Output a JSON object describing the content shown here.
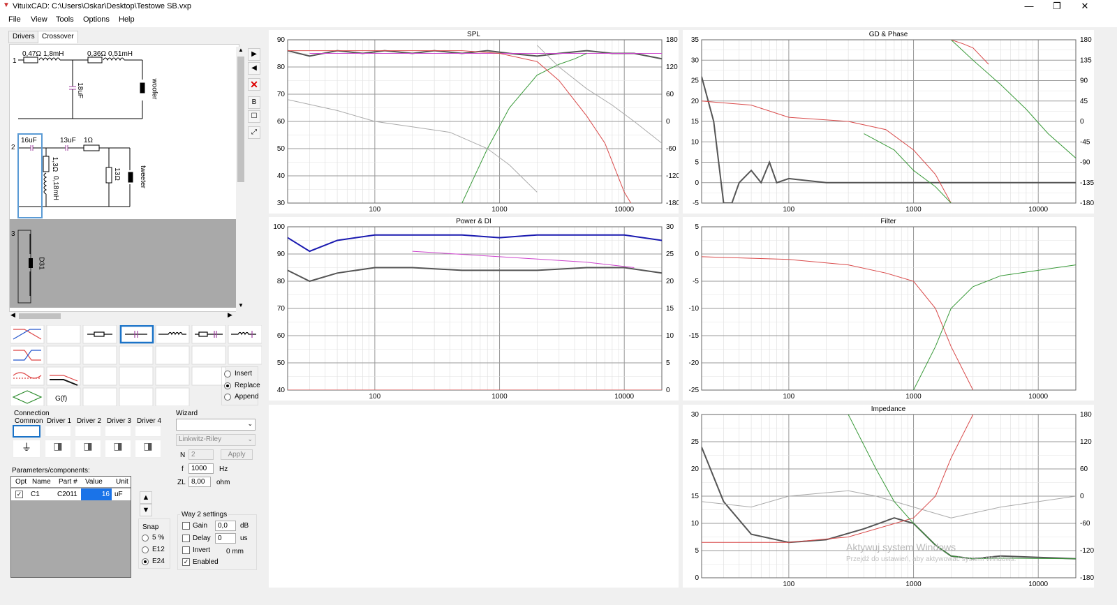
{
  "window": {
    "title": "VituixCAD: C:\\Users\\Oskar\\Desktop\\Testowe SB.vxp",
    "min": "—",
    "max": "❐",
    "close": "✕"
  },
  "menu": [
    "File",
    "View",
    "Tools",
    "Options",
    "Help"
  ],
  "tabs": [
    "Drivers",
    "Crossover"
  ],
  "schematic": {
    "way1": {
      "num": "1",
      "r1": "0,47Ω",
      "l1": "1,8mH",
      "r2": "0,36Ω",
      "l2": "0,51mH",
      "c1": "18uF",
      "driver": "woofer"
    },
    "way2": {
      "num": "2",
      "c1": "16uF",
      "c2": "13uF",
      "r1": "1Ω",
      "r2": "1,3Ω",
      "l1": "0,18mH",
      "r3": "13Ω",
      "driver": "tweeter"
    },
    "way3": {
      "num": "3",
      "driver": "D31"
    }
  },
  "insert_mode": {
    "options": [
      "Insert",
      "Replace",
      "Append"
    ],
    "selected": "Replace"
  },
  "gf_label": "G(f)",
  "connection": {
    "label": "Connection",
    "columns": [
      "Common",
      "Driver 1",
      "Driver 2",
      "Driver 3",
      "Driver 4"
    ]
  },
  "wizard": {
    "label": "Wizard",
    "type": "Linkwitz-Riley",
    "n_label": "N",
    "n": "2",
    "apply": "Apply",
    "f_label": "f",
    "f": "1000",
    "f_unit": "Hz",
    "zl_label": "ZL",
    "zl": "8,00",
    "zl_unit": "ohm"
  },
  "params": {
    "label": "Parameters/components:",
    "columns": [
      "Opt",
      "Name",
      "Part #",
      "Value",
      "Unit"
    ],
    "rows": [
      {
        "name": "C1",
        "part": "C2011",
        "value": "16",
        "unit": "uF",
        "checked": true
      }
    ]
  },
  "snap": {
    "label": "Snap",
    "options": [
      "5 %",
      "E12",
      "E24"
    ],
    "selected": "E24"
  },
  "way_settings": {
    "label": "Way 2 settings",
    "gain_label": "Gain",
    "gain": "0,0",
    "gain_unit": "dB",
    "delay_label": "Delay",
    "delay": "0",
    "delay_unit": "us",
    "invert_label": "Invert",
    "invert_mm": "0 mm",
    "enabled_label": "Enabled",
    "enabled": true
  },
  "charts": {
    "spl": {
      "title": "SPL"
    },
    "gd": {
      "title": "GD & Phase"
    },
    "power": {
      "title": "Power & DI"
    },
    "filter": {
      "title": "Filter"
    },
    "impedance": {
      "title": "Impedance"
    }
  },
  "watermark": {
    "line1": "Aktywuj system Windows",
    "line2": "Przejdź do ustawień, aby aktywować system Windows."
  },
  "colors": {
    "green": "#3a9a3a",
    "red": "#d94a4a",
    "gray": "#555555",
    "lightgray": "#aaaaaa",
    "blue": "#1a1ab0",
    "magenta": "#cc44cc"
  },
  "chart_data": [
    {
      "type": "line",
      "title": "SPL",
      "x_scale": "log",
      "xlim": [
        20,
        20000
      ],
      "ylim": [
        30,
        90
      ],
      "y2lim": [
        -180,
        180
      ],
      "x_ticks": [
        "100",
        "1000",
        "10000"
      ],
      "y_ticks": [
        "30",
        "40",
        "50",
        "60",
        "70",
        "80",
        "90"
      ],
      "y2_ticks": [
        "-180",
        "-120",
        "-60",
        "0",
        "60",
        "120",
        "180"
      ],
      "series": [
        {
          "color": "gray",
          "x": [
            20,
            30,
            50,
            80,
            120,
            200,
            300,
            500,
            800,
            1200,
            2000,
            3000,
            5000,
            8000,
            12000,
            20000
          ],
          "y": [
            86,
            84,
            86,
            85,
            86,
            85,
            86,
            85,
            86,
            85,
            84,
            85,
            86,
            85,
            85,
            83
          ]
        },
        {
          "color": "magenta",
          "x": [
            30,
            20000
          ],
          "y": [
            85,
            85
          ]
        },
        {
          "color": "green",
          "x": [
            500,
            800,
            1200,
            2000,
            3000,
            4000,
            5000
          ],
          "y": [
            30,
            50,
            65,
            77,
            81,
            83,
            85
          ]
        },
        {
          "color": "red",
          "x": [
            20,
            100,
            500,
            1000,
            2000,
            3000,
            5000,
            7000,
            10000,
            12000
          ],
          "y": [
            86,
            86,
            86,
            85,
            82,
            75,
            62,
            52,
            34,
            28
          ]
        },
        {
          "color": "lightgray",
          "x": [
            20,
            50,
            100,
            200,
            400,
            800,
            1200,
            2000
          ],
          "y": [
            68,
            64,
            60,
            58,
            56,
            50,
            44,
            34
          ]
        },
        {
          "color": "lightgray",
          "x": [
            2000,
            3000,
            5000,
            8000,
            12000,
            20000
          ],
          "y": [
            88,
            80,
            72,
            66,
            60,
            52
          ]
        }
      ]
    },
    {
      "type": "line",
      "title": "GD & Phase",
      "x_scale": "log",
      "xlim": [
        20,
        20000
      ],
      "ylim": [
        -5,
        35
      ],
      "y2lim": [
        -180,
        180
      ],
      "x_ticks": [
        "100",
        "1000",
        "10000"
      ],
      "y_ticks": [
        "-5",
        "0",
        "5",
        "10",
        "15",
        "20",
        "25",
        "30",
        "35"
      ],
      "y2_ticks": [
        "-180",
        "-135",
        "-90",
        "-45",
        "0",
        "45",
        "90",
        "135",
        "180"
      ],
      "series": [
        {
          "color": "gray",
          "x": [
            20,
            25,
            30,
            35,
            40,
            50,
            60,
            70,
            80,
            100,
            200,
            1000,
            2000,
            20000
          ],
          "y": [
            26,
            15,
            -5,
            -5,
            0,
            3,
            0,
            5,
            0,
            1,
            0,
            0,
            0,
            0
          ]
        },
        {
          "color": "red",
          "x": [
            20,
            50,
            100,
            300,
            600,
            1000,
            1500,
            2000
          ],
          "y": [
            20,
            19,
            16,
            15,
            13,
            8,
            2,
            -5
          ]
        },
        {
          "color": "red",
          "x": [
            2000,
            2500,
            3000,
            4000
          ],
          "y": [
            35,
            34,
            33,
            29
          ]
        },
        {
          "color": "green",
          "x": [
            400,
            700,
            1000,
            1500,
            2000
          ],
          "y": [
            12,
            8,
            3,
            -1,
            -5
          ]
        },
        {
          "color": "green",
          "x": [
            2000,
            3000,
            5000,
            8000,
            12000,
            20000
          ],
          "y": [
            35,
            30,
            24,
            18,
            12,
            6
          ]
        }
      ]
    },
    {
      "type": "line",
      "title": "Power & DI",
      "x_scale": "log",
      "xlim": [
        20,
        20000
      ],
      "ylim": [
        40,
        100
      ],
      "y2lim": [
        0,
        30
      ],
      "x_ticks": [
        "100",
        "1000",
        "10000"
      ],
      "y_ticks": [
        "40",
        "50",
        "60",
        "70",
        "80",
        "90",
        "100"
      ],
      "y2_ticks": [
        "0",
        "5",
        "10",
        "15",
        "20",
        "25",
        "30"
      ],
      "series": [
        {
          "color": "blue",
          "x": [
            20,
            30,
            50,
            100,
            200,
            500,
            1000,
            2000,
            5000,
            10000,
            20000
          ],
          "y": [
            96,
            91,
            95,
            97,
            97,
            97,
            96,
            97,
            97,
            97,
            95
          ]
        },
        {
          "color": "gray",
          "x": [
            20,
            30,
            50,
            100,
            200,
            500,
            1000,
            2000,
            5000,
            10000,
            20000
          ],
          "y": [
            84,
            80,
            83,
            85,
            85,
            84,
            84,
            84,
            85,
            85,
            83
          ]
        },
        {
          "color": "magenta",
          "x": [
            200,
            1000,
            5000,
            12000
          ],
          "y": [
            91,
            89,
            87,
            85
          ]
        },
        {
          "color": "red",
          "x": [
            20,
            20000
          ],
          "y": [
            40,
            40
          ]
        }
      ]
    },
    {
      "type": "line",
      "title": "Filter",
      "x_scale": "log",
      "xlim": [
        20,
        20000
      ],
      "ylim": [
        -25,
        5
      ],
      "x_ticks": [
        "100",
        "1000",
        "10000"
      ],
      "y_ticks": [
        "-25",
        "-20",
        "-15",
        "-10",
        "-5",
        "0",
        "5"
      ],
      "series": [
        {
          "color": "red",
          "x": [
            20,
            100,
            300,
            600,
            1000,
            1500,
            2000,
            3000
          ],
          "y": [
            -0.5,
            -1,
            -2,
            -3.5,
            -5,
            -10,
            -17,
            -25
          ]
        },
        {
          "color": "green",
          "x": [
            1000,
            1500,
            2000,
            3000,
            5000,
            10000,
            20000
          ],
          "y": [
            -25,
            -17,
            -10,
            -6,
            -4,
            -3,
            -2
          ]
        }
      ]
    },
    {
      "type": "line",
      "title": "Impedance",
      "x_scale": "log",
      "xlim": [
        20,
        20000
      ],
      "ylim": [
        0,
        30
      ],
      "y2lim": [
        -180,
        180
      ],
      "x_ticks": [
        "100",
        "1000",
        "10000"
      ],
      "y_ticks": [
        "0",
        "5",
        "10",
        "15",
        "20",
        "25",
        "30"
      ],
      "y2_ticks": [
        "-180",
        "-120",
        "-60",
        "0",
        "60",
        "120",
        "180"
      ],
      "series": [
        {
          "color": "gray",
          "x": [
            20,
            30,
            50,
            100,
            200,
            400,
            700,
            1000,
            1500,
            2000,
            3000,
            5000,
            20000
          ],
          "y": [
            24,
            14,
            8,
            6.5,
            7,
            9,
            11,
            10,
            6,
            4,
            3.5,
            4,
            3.5
          ]
        },
        {
          "color": "lightgray",
          "x": [
            20,
            50,
            100,
            300,
            500,
            1000,
            2000,
            5000,
            20000
          ],
          "y": [
            14,
            13,
            15,
            16,
            15,
            13,
            11,
            13,
            15
          ]
        },
        {
          "color": "red",
          "x": [
            20,
            100,
            300,
            600,
            1000,
            1500,
            2000,
            3000
          ],
          "y": [
            6.5,
            6.5,
            7.5,
            9.5,
            11,
            15,
            22,
            30
          ]
        },
        {
          "color": "green",
          "x": [
            300,
            500,
            700,
            1000,
            1500,
            2000,
            3000,
            5000,
            20000
          ],
          "y": [
            30,
            20,
            14,
            10,
            6,
            4,
            3.5,
            3.6,
            3.5
          ]
        }
      ]
    }
  ]
}
